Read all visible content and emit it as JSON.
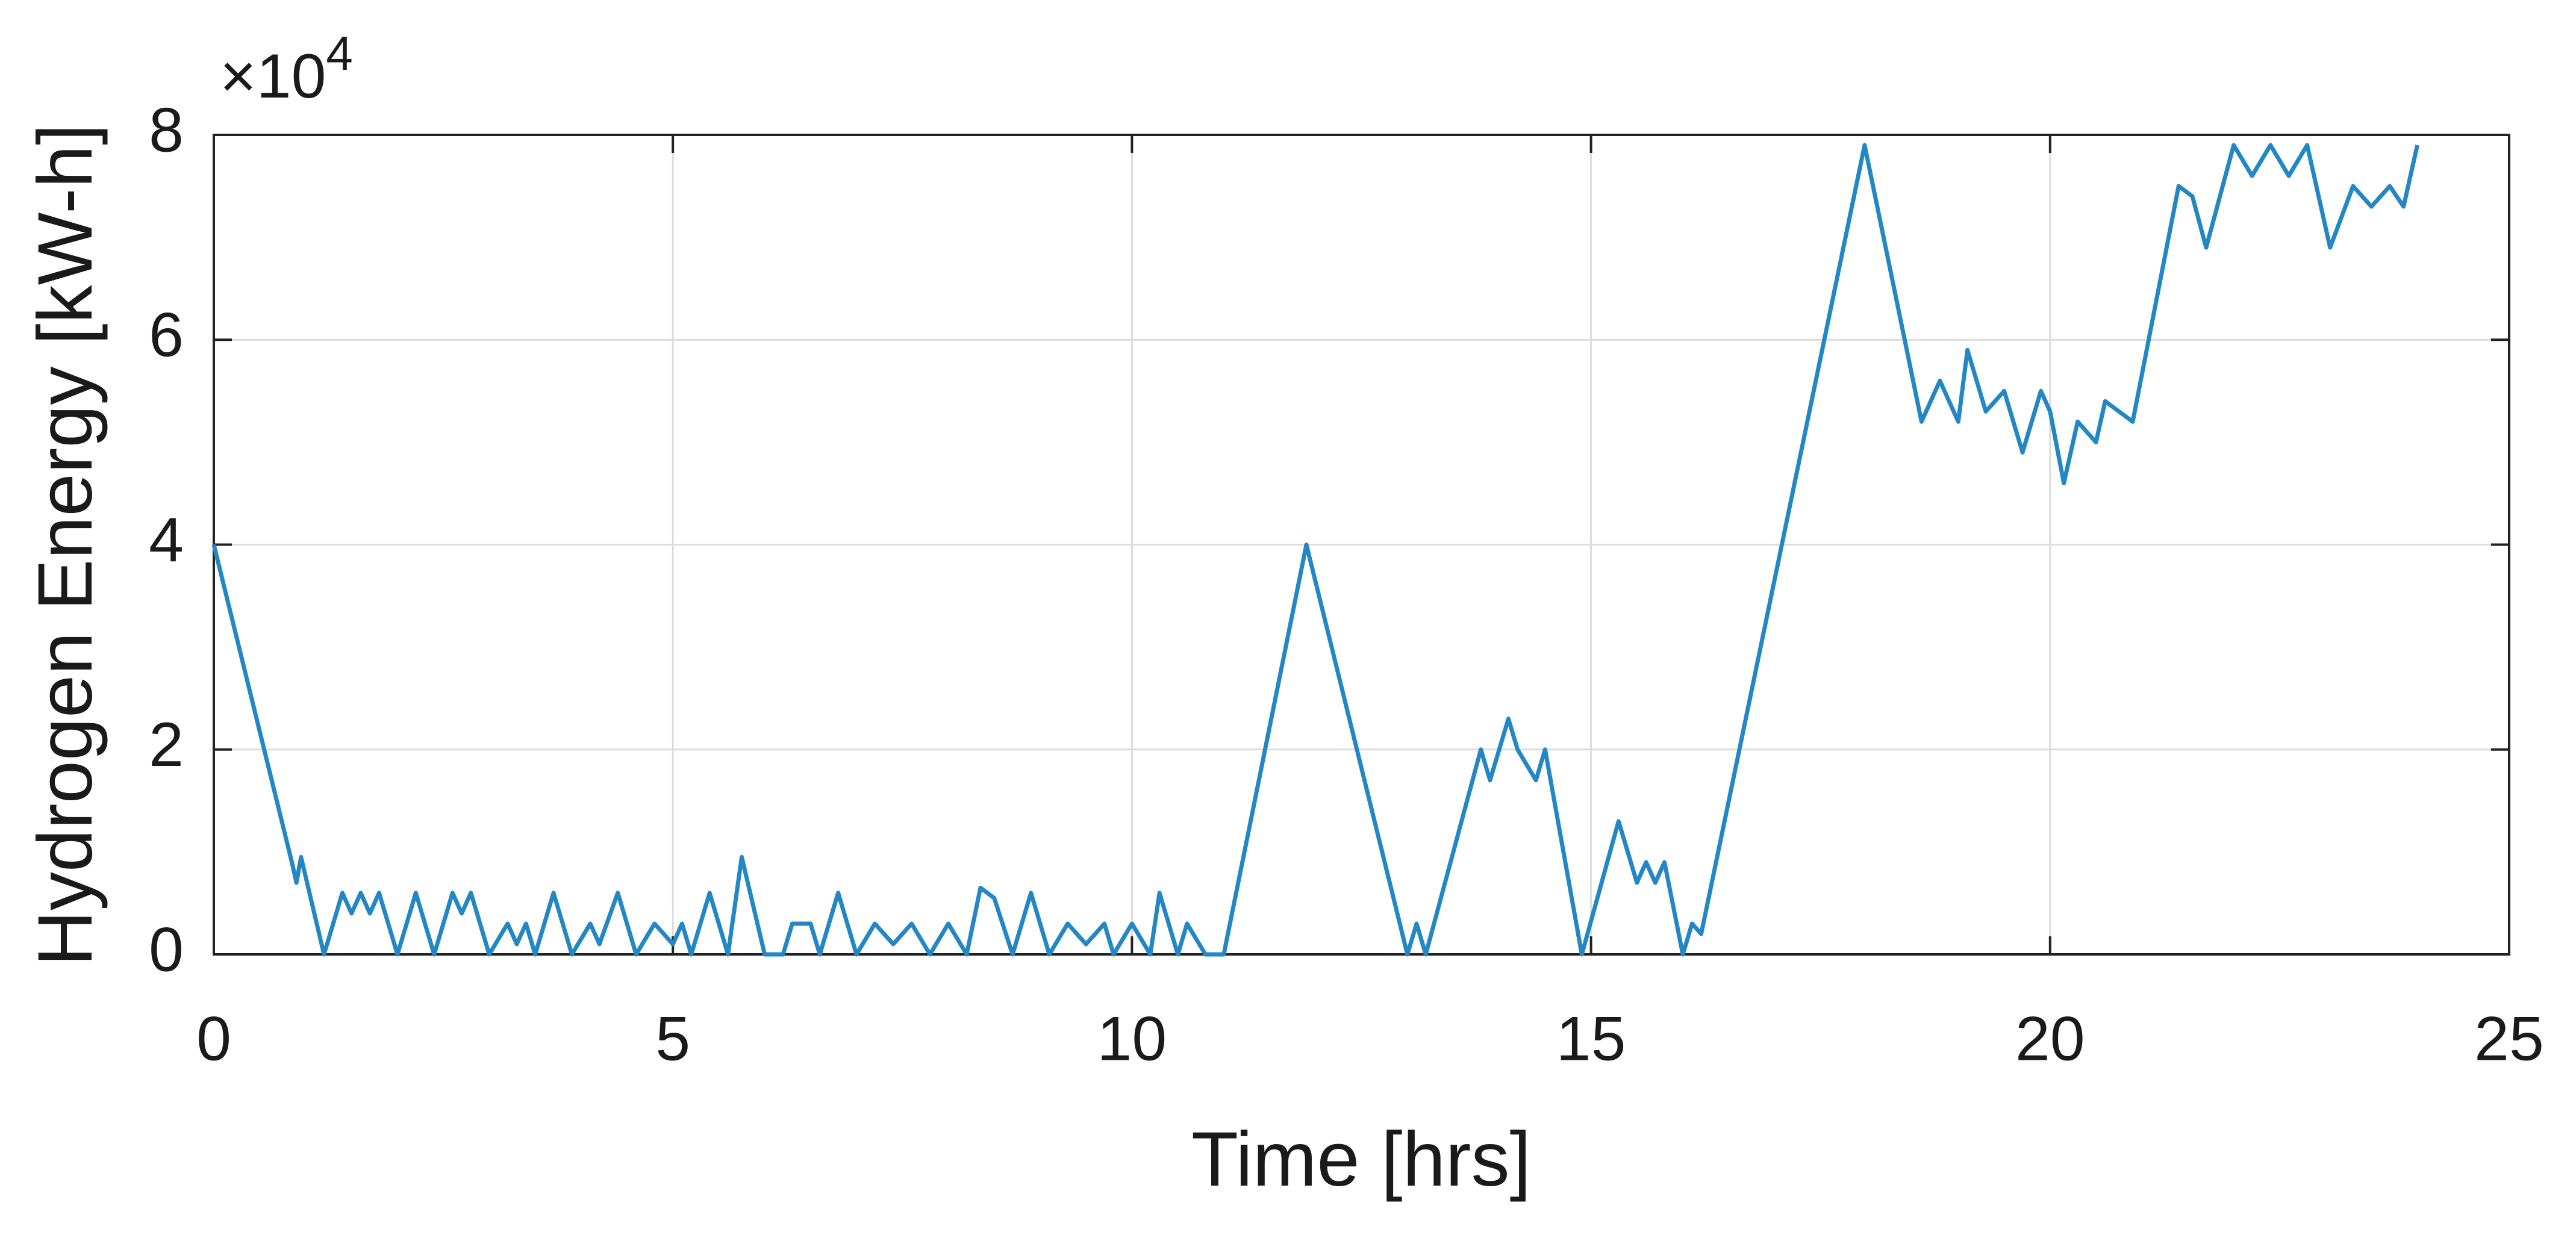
{
  "chart_data": {
    "type": "line",
    "x_label": "Time [hrs]",
    "y_label": "Hydrogen Energy [kW-h]",
    "y_multiplier": {
      "base": "×10",
      "exponent": "4"
    },
    "color": "#2387c5",
    "grid": true,
    "xlim": [
      0,
      25
    ],
    "xticks": [
      0,
      5,
      10,
      15,
      20,
      25
    ],
    "ylim": [
      0,
      80000
    ],
    "yticks": [
      {
        "value": 0,
        "label": "0"
      },
      {
        "value": 20000,
        "label": "2"
      },
      {
        "value": 40000,
        "label": "4"
      },
      {
        "value": 60000,
        "label": "6"
      },
      {
        "value": 80000,
        "label": "8"
      }
    ],
    "x": [
      0,
      0.85,
      0.9,
      0.95,
      1.2,
      1.4,
      1.5,
      1.6,
      1.7,
      1.8,
      2.0,
      2.2,
      2.4,
      2.6,
      2.7,
      2.8,
      3.0,
      3.2,
      3.3,
      3.4,
      3.5,
      3.7,
      3.9,
      4.1,
      4.2,
      4.4,
      4.6,
      4.8,
      5.0,
      5.1,
      5.2,
      5.4,
      5.6,
      5.75,
      6.0,
      6.2,
      6.3,
      6.5,
      6.6,
      6.8,
      7.0,
      7.2,
      7.4,
      7.6,
      7.8,
      8.0,
      8.2,
      8.35,
      8.5,
      8.7,
      8.9,
      9.1,
      9.3,
      9.5,
      9.7,
      9.8,
      10.0,
      10.2,
      10.3,
      10.5,
      10.6,
      10.8,
      11.0,
      11.9,
      13.0,
      13.1,
      13.2,
      13.8,
      13.9,
      14.1,
      14.2,
      14.4,
      14.5,
      14.9,
      15.3,
      15.5,
      15.6,
      15.7,
      15.8,
      16.0,
      16.1,
      16.2,
      17.98,
      18.6,
      18.8,
      19.0,
      19.1,
      19.3,
      19.5,
      19.7,
      19.9,
      20.0,
      20.15,
      20.3,
      20.5,
      20.6,
      20.9,
      21.4,
      21.55,
      21.7,
      22.0,
      22.2,
      22.4,
      22.6,
      22.8,
      23.05,
      23.3,
      23.5,
      23.7,
      23.85,
      24.0
    ],
    "values": [
      40000,
      9000,
      7000,
      9500,
      0,
      6000,
      4000,
      6000,
      4000,
      6000,
      0,
      6000,
      0,
      6000,
      4000,
      6000,
      0,
      3000,
      1000,
      3000,
      0,
      6000,
      0,
      3000,
      1000,
      6000,
      0,
      3000,
      1000,
      3000,
      0,
      6000,
      0,
      9500,
      0,
      0,
      3000,
      3000,
      0,
      6000,
      0,
      3000,
      1000,
      3000,
      0,
      3000,
      0,
      6500,
      5500,
      0,
      6000,
      0,
      3000,
      1000,
      3000,
      0,
      3000,
      0,
      6000,
      0,
      3000,
      0,
      0,
      40000,
      0,
      3000,
      0,
      20000,
      17000,
      23000,
      20000,
      17000,
      20000,
      0,
      13000,
      7000,
      9000,
      7000,
      9000,
      0,
      3000,
      2000,
      79000,
      52000,
      56000,
      52000,
      59000,
      53000,
      55000,
      49000,
      55000,
      53000,
      46000,
      52000,
      50000,
      54000,
      52000,
      75000,
      74000,
      69000,
      79000,
      76000,
      79000,
      76000,
      79000,
      69000,
      75000,
      73000,
      75000,
      73000,
      79000
    ]
  }
}
